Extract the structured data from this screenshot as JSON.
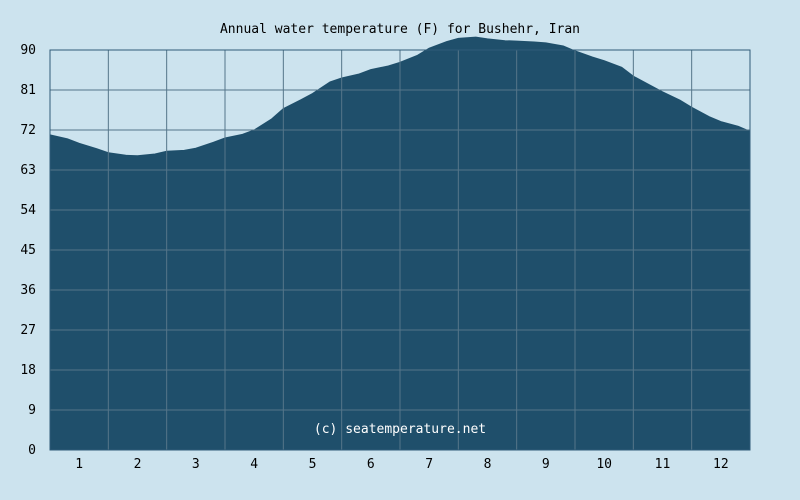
{
  "chart_data": {
    "type": "area",
    "title": "Annual water temperature (F) for Bushehr, Iran",
    "xlabel": "",
    "ylabel": "",
    "x_ticks": [
      "1",
      "2",
      "3",
      "4",
      "5",
      "6",
      "7",
      "8",
      "9",
      "10",
      "11",
      "12"
    ],
    "y_ticks": [
      "0",
      "9",
      "18",
      "27",
      "36",
      "45",
      "54",
      "63",
      "72",
      "81",
      "90"
    ],
    "ylim": [
      0,
      90
    ],
    "xlim": [
      0.5,
      12.5
    ],
    "grid": true,
    "x": [
      0.5,
      0.8,
      1.0,
      1.3,
      1.5,
      1.8,
      2.0,
      2.3,
      2.5,
      2.8,
      3.0,
      3.3,
      3.5,
      3.8,
      4.0,
      4.3,
      4.5,
      4.8,
      5.0,
      5.3,
      5.5,
      5.8,
      6.0,
      6.3,
      6.5,
      6.8,
      7.0,
      7.3,
      7.5,
      7.8,
      8.0,
      8.3,
      8.5,
      8.8,
      9.0,
      9.3,
      9.5,
      9.8,
      10.0,
      10.3,
      10.5,
      10.8,
      11.0,
      11.3,
      11.5,
      11.8,
      12.0,
      12.3,
      12.5
    ],
    "values": [
      70.9,
      70.0,
      69.0,
      67.8,
      66.9,
      66.3,
      66.2,
      66.6,
      67.2,
      67.4,
      67.9,
      69.2,
      70.2,
      71.0,
      72.0,
      74.5,
      76.8,
      78.8,
      80.2,
      82.8,
      83.7,
      84.6,
      85.6,
      86.4,
      87.2,
      88.8,
      90.4,
      91.9,
      92.6,
      92.9,
      92.5,
      92.1,
      92.0,
      91.8,
      91.6,
      90.9,
      89.8,
      88.4,
      87.6,
      86.1,
      84.1,
      82.0,
      80.6,
      78.7,
      77.1,
      75.0,
      73.9,
      72.8,
      71.7
    ],
    "series": [
      {
        "name": "",
        "color": "#1f4f6b"
      }
    ],
    "colors": {
      "background": "#cce3ee",
      "area": "#1f4f6b",
      "grid": "#55768a",
      "axis": "#2f5b78",
      "watermark": "#ffffff"
    },
    "watermark": "(c) seatemperature.net"
  }
}
